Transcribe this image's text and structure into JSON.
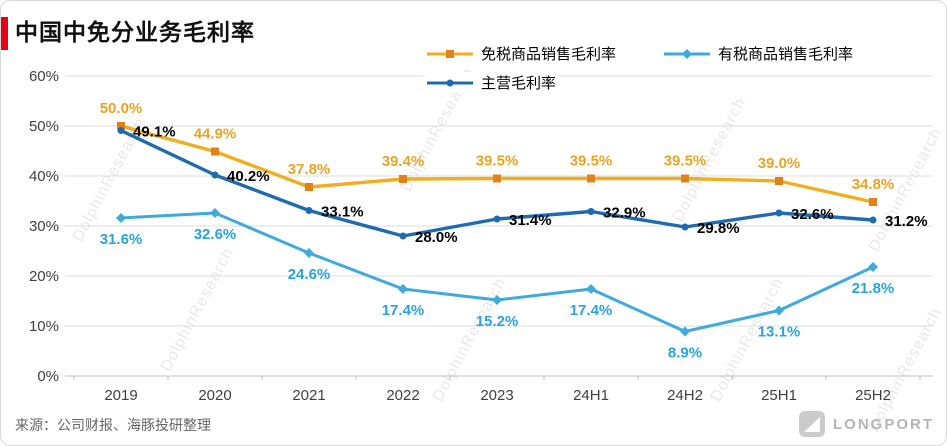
{
  "title": "中国中免分业务毛利率",
  "source_note": "来源：公司财报、海豚投研整理",
  "watermark_text": "DolphinResearch",
  "brand_text": "LONGPORT",
  "colors": {
    "accent_red": "#E60012",
    "grid": "#DCDCDC",
    "axis": "#BFBFBF",
    "tick_label": "#404040",
    "title": "#111111",
    "source": "#666666",
    "brand": "#B5B5B5"
  },
  "chart_data": {
    "type": "line",
    "title": "中国中免分业务毛利率",
    "categories": [
      "2019",
      "2020",
      "2021",
      "2022",
      "2023",
      "24H1",
      "24H2",
      "25H1",
      "25H2"
    ],
    "series": [
      {
        "name": "免税商品销售毛利率",
        "values": [
          50.0,
          44.9,
          37.8,
          39.4,
          39.5,
          39.5,
          39.5,
          39.0,
          34.8
        ],
        "color": "#F2AE1C",
        "marker": "square",
        "marker_color": "#E0811C",
        "label_color": "#E8A425",
        "label_position": "above"
      },
      {
        "name": "有税商品销售毛利率",
        "values": [
          31.6,
          32.6,
          24.6,
          17.4,
          15.2,
          17.4,
          8.9,
          13.1,
          21.8
        ],
        "color": "#3FAADC",
        "marker": "diamond",
        "marker_color": "#3FAADC",
        "label_color": "#29A3DB",
        "label_position": "below"
      },
      {
        "name": "主营毛利率",
        "values": [
          49.1,
          40.2,
          33.1,
          28.0,
          31.4,
          32.9,
          29.8,
          32.6,
          31.2
        ],
        "color": "#1F6BB0",
        "marker": "circle",
        "marker_color": "#1F6BB0",
        "label_color": "#000000",
        "label_position": "right"
      }
    ],
    "xlabel": "",
    "ylabel": "",
    "ylim": [
      0,
      60
    ],
    "ytick_step": 10,
    "ytick_suffix": "%",
    "ytick_labels": [
      "0%",
      "10%",
      "20%",
      "30%",
      "40%",
      "50%",
      "60%"
    ],
    "grid": true,
    "legend_position": "top",
    "data_labels": true,
    "label_format": "percent_1dp"
  }
}
